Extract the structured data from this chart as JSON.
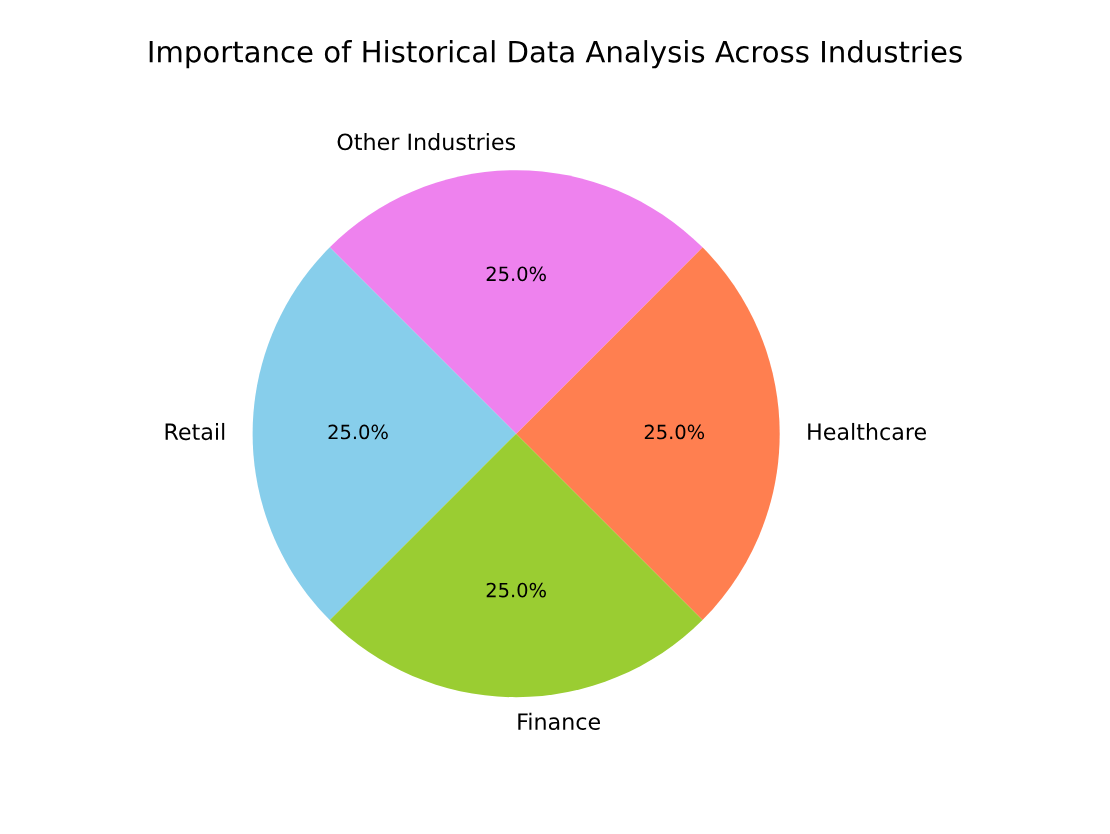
{
  "chart_data": {
    "type": "pie",
    "title": "Importance of Historical Data Analysis Across Industries",
    "categories": [
      "Healthcare",
      "Other Industries",
      "Retail",
      "Finance"
    ],
    "values": [
      25,
      25,
      25,
      25
    ],
    "colors": [
      "#ff7f50",
      "#ee82ee",
      "#87ceeb",
      "#9acd32"
    ],
    "value_labels": [
      "25.0%",
      "25.0%",
      "25.0%",
      "25.0%"
    ]
  }
}
